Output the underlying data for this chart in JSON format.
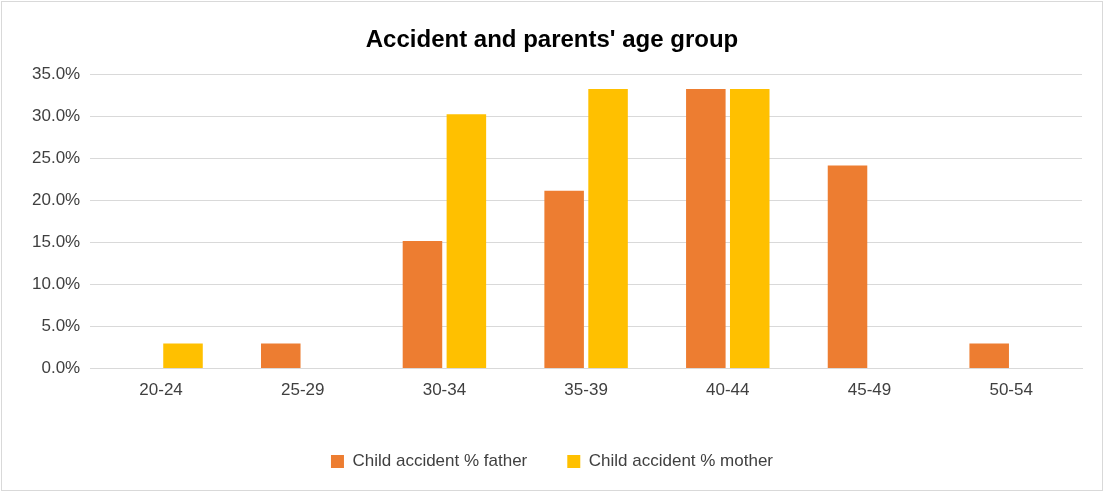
{
  "chart_data": {
    "type": "bar",
    "title": "Accident and parents' age group",
    "categories": [
      "20-24",
      "25-29",
      "30-34",
      "35-39",
      "40-44",
      "45-49",
      "50-54"
    ],
    "series": [
      {
        "name": "Child accident % father",
        "color": "#ed7d31",
        "values": [
          0,
          3.0,
          15.2,
          21.2,
          33.3,
          24.2,
          3.0
        ]
      },
      {
        "name": "Child accident % mother",
        "color": "#ffc000",
        "values": [
          3.0,
          0,
          30.3,
          33.3,
          33.3,
          0,
          0
        ]
      }
    ],
    "ylim": [
      0,
      35
    ],
    "yticks": [
      {
        "value": 0,
        "label": "0.0%"
      },
      {
        "value": 5,
        "label": "5.0%"
      },
      {
        "value": 10,
        "label": "10.0%"
      },
      {
        "value": 15,
        "label": "15.0%"
      },
      {
        "value": 20,
        "label": "20.0%"
      },
      {
        "value": 25,
        "label": "25.0%"
      },
      {
        "value": 30,
        "label": "30.0%"
      },
      {
        "value": 35,
        "label": "35.0%"
      }
    ],
    "grid": "y",
    "legend": "bottom"
  }
}
